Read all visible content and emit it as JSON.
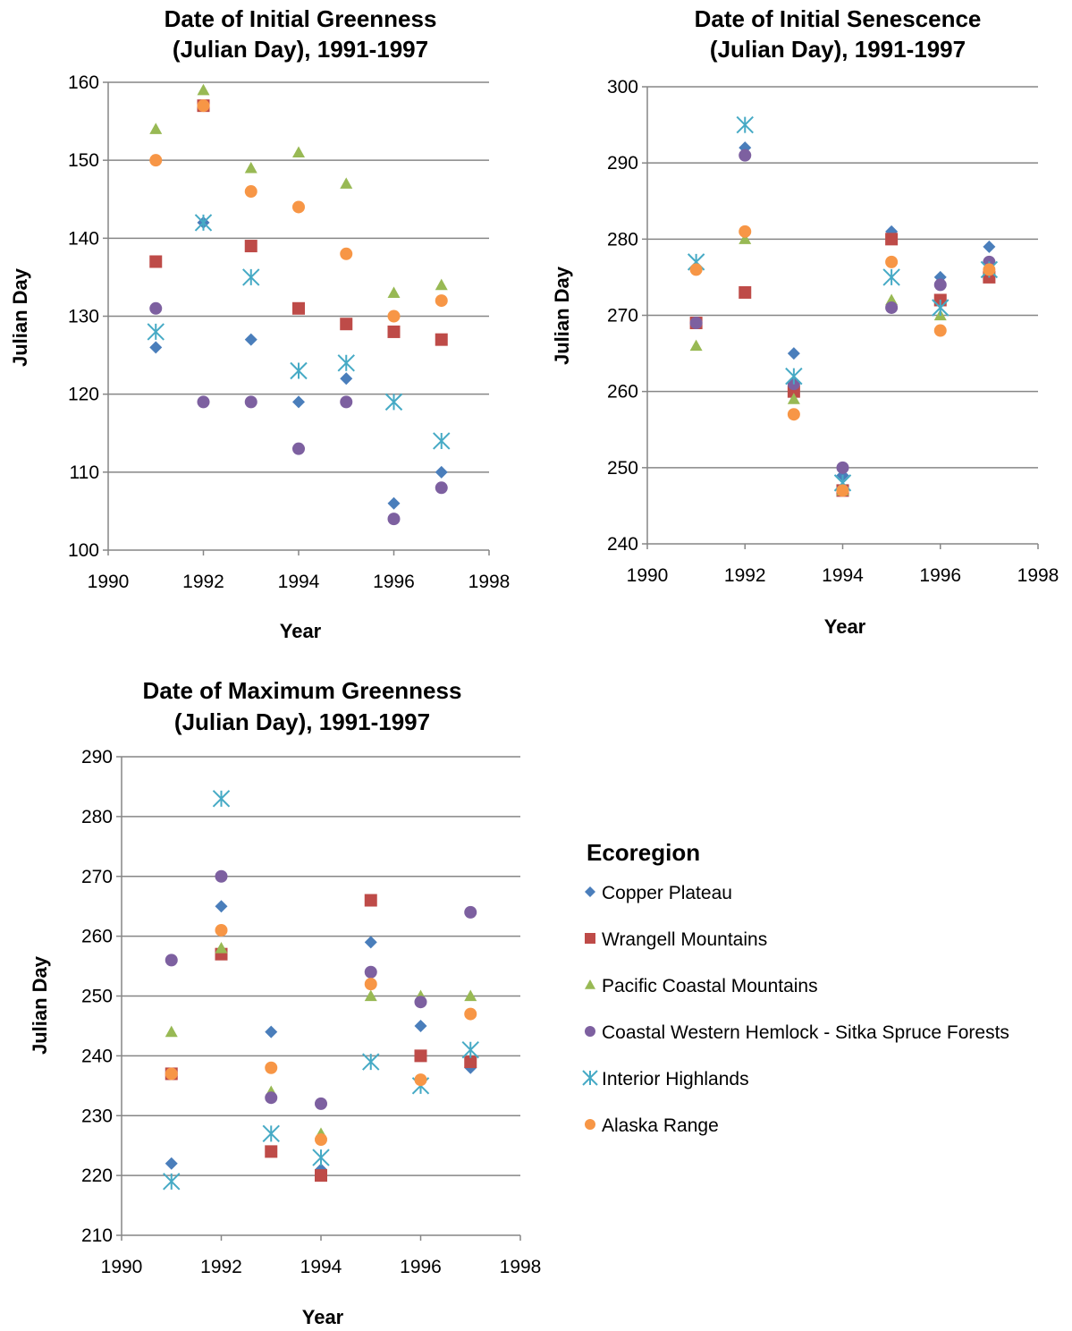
{
  "colors": {
    "copper": "#4a7ebb",
    "wrangell": "#be4b48",
    "pacific": "#98b954",
    "hemlock": "#7d60a0",
    "interior": "#46aac5",
    "alaska": "#f79646",
    "grid": "#868686"
  },
  "legend": {
    "title": "Ecoregion",
    "items": [
      {
        "label": "Copper Plateau",
        "marker": "diamond",
        "color_key": "copper"
      },
      {
        "label": "Wrangell Mountains",
        "marker": "square",
        "color_key": "wrangell"
      },
      {
        "label": "Pacific Coastal Mountains",
        "marker": "triangle",
        "color_key": "pacific"
      },
      {
        "label": "Coastal Western Hemlock - Sitka Spruce Forests",
        "marker": "circle",
        "color_key": "hemlock"
      },
      {
        "label": "Interior Highlands",
        "marker": "asterisk",
        "color_key": "interior"
      },
      {
        "label": "Alaska Range",
        "marker": "circle",
        "color_key": "alaska"
      }
    ]
  },
  "chart_data": [
    {
      "type": "scatter",
      "title": [
        "Date of Initial Greenness",
        "(Julian Day), 1991-1997"
      ],
      "xlabel": "Year",
      "ylabel": "Julian Day",
      "xlim": [
        1990,
        1998
      ],
      "ylim": [
        100,
        160
      ],
      "xticks": [
        1990,
        1992,
        1994,
        1996,
        1998
      ],
      "yticks": [
        100,
        110,
        120,
        130,
        140,
        150,
        160
      ],
      "grid": true,
      "x": [
        1991,
        1992,
        1993,
        1994,
        1995,
        1996,
        1997
      ],
      "series": [
        {
          "name": "Copper Plateau",
          "values": [
            126,
            142,
            127,
            119,
            122,
            106,
            110
          ]
        },
        {
          "name": "Wrangell Mountains",
          "values": [
            137,
            157,
            139,
            131,
            129,
            128,
            127
          ]
        },
        {
          "name": "Pacific Coastal Mountains",
          "values": [
            154,
            159,
            149,
            151,
            147,
            133,
            134
          ]
        },
        {
          "name": "Coastal Western Hemlock - Sitka Spruce Forests",
          "values": [
            131,
            119,
            119,
            113,
            119,
            104,
            108
          ]
        },
        {
          "name": "Interior Highlands",
          "values": [
            128,
            142,
            135,
            123,
            124,
            119,
            114
          ]
        },
        {
          "name": "Alaska Range",
          "values": [
            150,
            157,
            146,
            144,
            138,
            130,
            132
          ]
        }
      ]
    },
    {
      "type": "scatter",
      "title": [
        "Date of Initial Senescence",
        "(Julian Day), 1991-1997"
      ],
      "xlabel": "Year",
      "ylabel": "Julian Day",
      "xlim": [
        1990,
        1998
      ],
      "ylim": [
        240,
        300
      ],
      "xticks": [
        1990,
        1992,
        1994,
        1996,
        1998
      ],
      "yticks": [
        240,
        250,
        260,
        270,
        280,
        290,
        300
      ],
      "grid": true,
      "x": [
        1991,
        1992,
        1993,
        1994,
        1995,
        1996,
        1997
      ],
      "series": [
        {
          "name": "Copper Plateau",
          "values": [
            269,
            292,
            265,
            249,
            281,
            275,
            279
          ]
        },
        {
          "name": "Wrangell Mountains",
          "values": [
            269,
            273,
            260,
            247,
            280,
            272,
            275
          ]
        },
        {
          "name": "Pacific Coastal Mountains",
          "values": [
            266,
            280,
            259,
            247,
            272,
            270,
            276
          ]
        },
        {
          "name": "Coastal Western Hemlock - Sitka Spruce Forests",
          "values": [
            269,
            291,
            261,
            250,
            271,
            274,
            277
          ]
        },
        {
          "name": "Interior Highlands",
          "values": [
            277,
            295,
            262,
            248,
            275,
            271,
            276
          ]
        },
        {
          "name": "Alaska Range",
          "values": [
            276,
            281,
            257,
            247,
            277,
            268,
            276
          ]
        }
      ]
    },
    {
      "type": "scatter",
      "title": [
        "Date of Maximum Greenness",
        "(Julian Day), 1991-1997"
      ],
      "xlabel": "Year",
      "ylabel": "Julian Day",
      "xlim": [
        1990,
        1998
      ],
      "ylim": [
        210,
        290
      ],
      "xticks": [
        1990,
        1992,
        1994,
        1996,
        1998
      ],
      "yticks": [
        210,
        220,
        230,
        240,
        250,
        260,
        270,
        280,
        290
      ],
      "grid": true,
      "x": [
        1991,
        1992,
        1993,
        1994,
        1995,
        1996,
        1997
      ],
      "series": [
        {
          "name": "Copper Plateau",
          "values": [
            222,
            265,
            244,
            221,
            259,
            245,
            238
          ]
        },
        {
          "name": "Wrangell Mountains",
          "values": [
            237,
            257,
            224,
            220,
            266,
            240,
            239
          ]
        },
        {
          "name": "Pacific Coastal Mountains",
          "values": [
            244,
            258,
            234,
            227,
            250,
            250,
            250
          ]
        },
        {
          "name": "Coastal Western Hemlock - Sitka Spruce Forests",
          "values": [
            256,
            270,
            233,
            232,
            254,
            249,
            264
          ]
        },
        {
          "name": "Interior Highlands",
          "values": [
            219,
            283,
            227,
            223,
            239,
            235,
            241
          ]
        },
        {
          "name": "Alaska Range",
          "values": [
            237,
            261,
            238,
            226,
            252,
            236,
            247
          ]
        }
      ]
    }
  ]
}
